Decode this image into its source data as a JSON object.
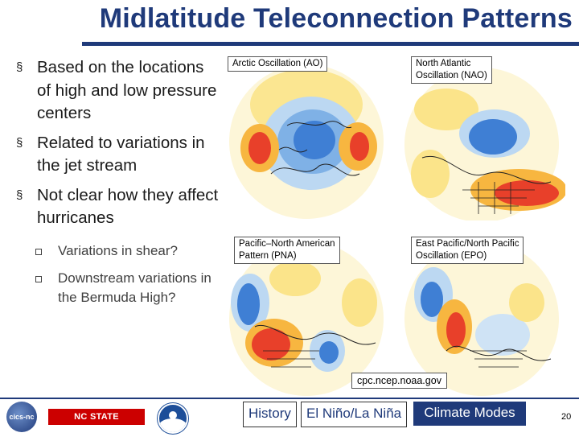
{
  "slide": {
    "title": "Midlatitude Teleconnection Patterns",
    "bullets": [
      "Based on the locations of high and low pressure centers",
      "Related to variations in the jet stream",
      "Not clear how they affect hurricanes"
    ],
    "sub_bullets": [
      "Variations in shear?",
      "Downstream variations in the Bermuda High?"
    ],
    "bullet_marker": "§",
    "maps": [
      {
        "label": "Arctic Oscillation (AO)"
      },
      {
        "label": "North Atlantic\nOscillation (NAO)"
      },
      {
        "label": "Pacific–North American\nPattern (PNA)"
      },
      {
        "label": "East Pacific/North Pacific\nOscillation (EPO)"
      }
    ],
    "source": "cpc.ncep.noaa.gov",
    "nav": {
      "history": "History",
      "el_nino": "El Niño/La Niña",
      "climate_modes": "Climate Modes"
    },
    "logos": {
      "cics": "cics-nc",
      "ncsu": "NC STATE UNIVERSITY"
    },
    "page_number": "20",
    "colors": {
      "title": "#1f3a7a",
      "positive": "#e8402a",
      "negative": "#2a6fd1",
      "nav_active": "#1f3a7a"
    }
  }
}
